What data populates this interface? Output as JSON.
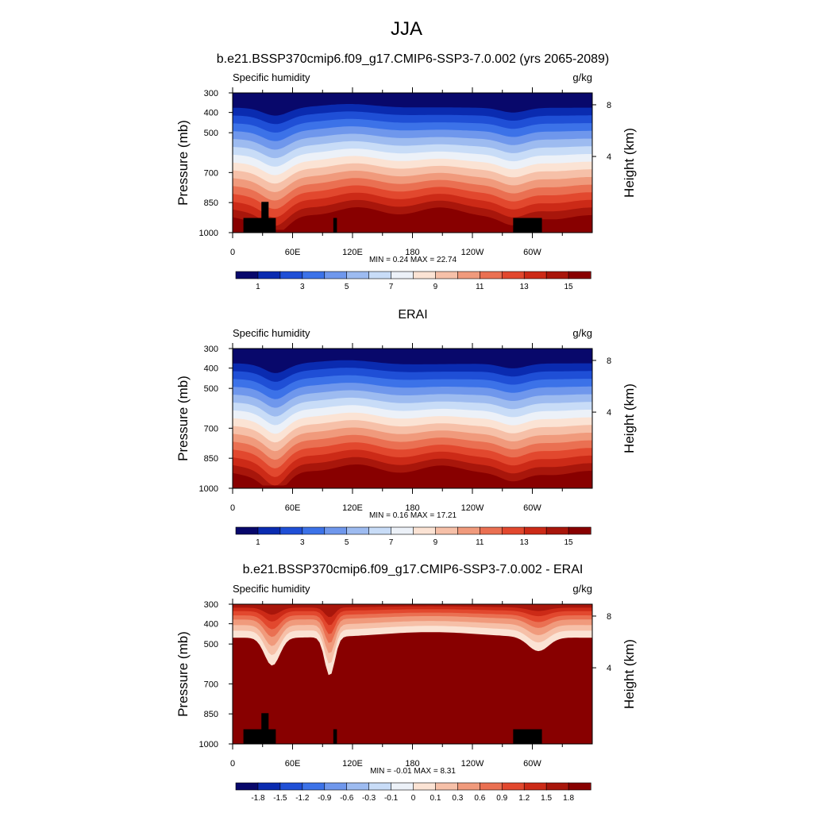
{
  "chart_data": {
    "type": "heatmap",
    "title": "JJA",
    "colors": {
      "absolute": [
        "#08086b",
        "#0a2bb0",
        "#1f4fd6",
        "#3c72e8",
        "#6f97ec",
        "#9dbbf0",
        "#c8dcf7",
        "#ecf1f8",
        "#fbe3d4",
        "#f6c0a8",
        "#f09a7c",
        "#ea7052",
        "#e2482e",
        "#cc2a17",
        "#a8160b",
        "#880000"
      ],
      "difference": [
        "#08086b",
        "#0a2bb0",
        "#1f4fd6",
        "#3c72e8",
        "#6f97ec",
        "#9dbbf0",
        "#c8dcf7",
        "#ecf1f8",
        "#fbe3d4",
        "#f6c0a8",
        "#f09a7c",
        "#ea7052",
        "#e2482e",
        "#cc2a17",
        "#a8160b",
        "#880000"
      ],
      "terrain": "#000000"
    },
    "panels": [
      {
        "title": "b.e21.BSSP370cmip6.f09_g17.CMIP6-SSP3-7.0.002 (yrs 2065-2089)",
        "left_label": "Specific humidity",
        "right_label": "g/kg",
        "ylabel": "Pressure (mb)",
        "ylabel_right": "Height (km)",
        "yticks": [
          "300",
          "400",
          "500",
          "700",
          "850",
          "1000"
        ],
        "yticks_right": [
          "8",
          "4"
        ],
        "xticks": [
          "0",
          "60E",
          "120E",
          "180",
          "120W",
          "60W"
        ],
        "minmax": "MIN =   0.24  MAX =  22.74",
        "colorbar_labels": [
          "1",
          "3",
          "5",
          "7",
          "9",
          "11",
          "13",
          "15"
        ],
        "terrain_mask": true,
        "field": "model"
      },
      {
        "title": "ERAI",
        "left_label": "Specific humidity",
        "right_label": "g/kg",
        "ylabel": "Pressure (mb)",
        "ylabel_right": "Height (km)",
        "yticks": [
          "300",
          "400",
          "500",
          "700",
          "850",
          "1000"
        ],
        "yticks_right": [
          "8",
          "4"
        ],
        "xticks": [
          "0",
          "60E",
          "120E",
          "180",
          "120W",
          "60W"
        ],
        "minmax": "MIN =   0.16  MAX =  17.21",
        "colorbar_labels": [
          "1",
          "3",
          "5",
          "7",
          "9",
          "11",
          "13",
          "15"
        ],
        "terrain_mask": false,
        "field": "obs"
      },
      {
        "title": "b.e21.BSSP370cmip6.f09_g17.CMIP6-SSP3-7.0.002 - ERAI",
        "left_label": "Specific humidity",
        "right_label": "g/kg",
        "ylabel": "Pressure (mb)",
        "ylabel_right": "Height (km)",
        "yticks": [
          "300",
          "400",
          "500",
          "700",
          "850",
          "1000"
        ],
        "yticks_right": [
          "8",
          "4"
        ],
        "xticks": [
          "0",
          "60E",
          "120E",
          "180",
          "120W",
          "60W"
        ],
        "minmax": "MIN =  -0.01  MAX =   8.31",
        "colorbar_labels": [
          "-1.8",
          "-1.5",
          "-1.2",
          "-0.9",
          "-0.6",
          "-0.3",
          "-0.1",
          "0",
          "0.1",
          "0.3",
          "0.6",
          "0.9",
          "1.2",
          "1.5",
          "1.8"
        ],
        "terrain_mask": true,
        "field": "diff"
      }
    ]
  }
}
